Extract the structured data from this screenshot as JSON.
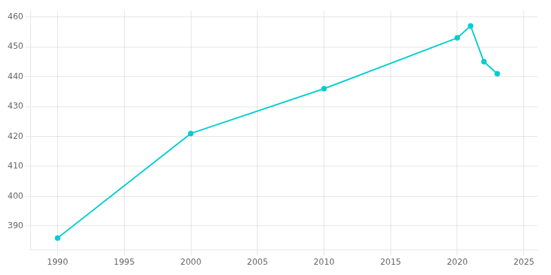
{
  "chart_data": {
    "type": "line",
    "x": [
      1990,
      2000,
      2010,
      2020,
      2021,
      2022,
      2023
    ],
    "values": [
      386,
      421,
      436,
      453,
      457,
      445,
      441
    ],
    "color": "#00CED1",
    "marker": "o",
    "xlim": [
      1988,
      2026
    ],
    "ylim": [
      382,
      462
    ],
    "xticks": [
      1990,
      1995,
      2000,
      2005,
      2010,
      2015,
      2020,
      2025
    ],
    "yticks": [
      390,
      400,
      410,
      420,
      430,
      440,
      450,
      460
    ],
    "grid": true
  }
}
